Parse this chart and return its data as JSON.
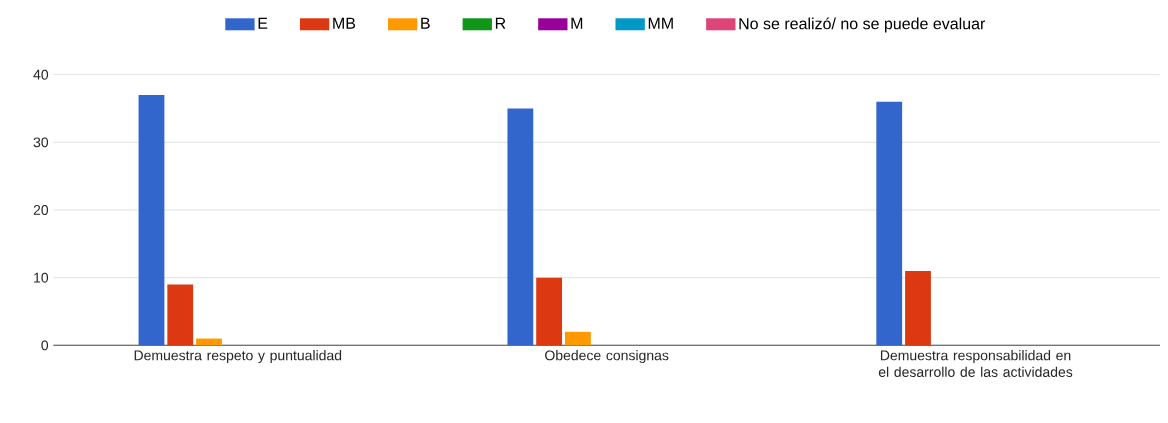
{
  "chart_data": {
    "type": "bar",
    "categories": [
      "Demuestra respeto y puntualidad",
      "Obedece consignas",
      "Demuestra responsabilidad en el desarrollo de las actividades"
    ],
    "series": [
      {
        "name": "E",
        "color": "#3366cc",
        "values": [
          37,
          35,
          36
        ]
      },
      {
        "name": "MB",
        "color": "#dc3912",
        "values": [
          9,
          10,
          11
        ]
      },
      {
        "name": "B",
        "color": "#ff9900",
        "values": [
          1,
          2,
          0
        ]
      },
      {
        "name": "R",
        "color": "#109618",
        "values": [
          0,
          0,
          0
        ]
      },
      {
        "name": "M",
        "color": "#990099",
        "values": [
          0,
          0,
          0
        ]
      },
      {
        "name": "MM",
        "color": "#0099c6",
        "values": [
          0,
          0,
          0
        ]
      },
      {
        "name": "No se realizó/ no se puede evaluar",
        "color": "#dd4477",
        "values": [
          0,
          0,
          0
        ]
      }
    ],
    "ylim": [
      0,
      40
    ],
    "yticks": [
      0,
      10,
      20,
      30,
      40
    ],
    "grid": "y",
    "legend": "top"
  }
}
